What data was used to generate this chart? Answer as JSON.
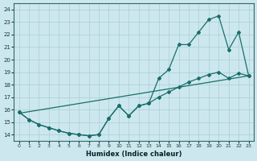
{
  "xlabel": "Humidex (Indice chaleur)",
  "xlim": [
    -0.5,
    23.5
  ],
  "ylim": [
    13.5,
    24.5
  ],
  "yticks": [
    14,
    15,
    16,
    17,
    18,
    19,
    20,
    21,
    22,
    23,
    24
  ],
  "xticks": [
    0,
    1,
    2,
    3,
    4,
    5,
    6,
    7,
    8,
    9,
    10,
    11,
    12,
    13,
    14,
    15,
    16,
    17,
    18,
    19,
    20,
    21,
    22,
    23
  ],
  "bg_color": "#cce8ee",
  "grid_color": "#aacdd4",
  "line_color": "#1a6e6a",
  "line1_x": [
    0,
    23
  ],
  "line1_y": [
    15.7,
    18.7
  ],
  "line2_x": [
    0,
    1,
    2,
    3,
    4,
    5,
    6,
    7,
    8,
    9,
    10,
    11,
    12,
    13,
    14,
    15,
    16,
    17,
    18,
    19,
    20,
    21,
    22,
    23
  ],
  "line2_y": [
    15.8,
    15.2,
    14.8,
    14.55,
    14.3,
    14.1,
    14.0,
    13.9,
    14.0,
    15.3,
    16.3,
    15.5,
    16.3,
    16.5,
    17.0,
    17.4,
    17.8,
    18.2,
    18.5,
    18.8,
    19.0,
    18.5,
    18.9,
    18.7
  ],
  "line3_x": [
    0,
    1,
    2,
    3,
    4,
    5,
    6,
    7,
    8,
    9,
    10,
    11,
    12,
    13,
    14,
    15,
    16,
    17,
    18,
    19,
    20,
    21,
    22,
    23
  ],
  "line3_y": [
    15.8,
    15.2,
    14.8,
    14.55,
    14.3,
    14.1,
    14.0,
    13.9,
    14.0,
    15.3,
    16.3,
    15.5,
    16.3,
    16.5,
    18.5,
    19.2,
    21.2,
    21.2,
    22.2,
    23.2,
    23.5,
    20.8,
    22.2,
    18.7
  ]
}
